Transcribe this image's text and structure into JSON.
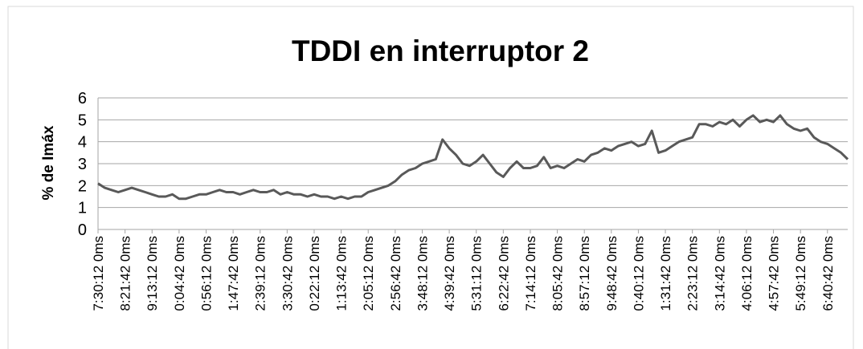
{
  "chart_data": {
    "type": "line",
    "title": "TDDI en interruptor 2",
    "y_label": "% de Imáx",
    "color": "#595959",
    "ylim": [
      0,
      6
    ],
    "yticks": [
      0,
      1,
      2,
      3,
      4,
      5,
      6
    ],
    "grid": true,
    "categories": [
      "7:30:12 0ms",
      null,
      null,
      null,
      "8:21:42 0ms",
      null,
      null,
      null,
      "9:13:12 0ms",
      null,
      null,
      null,
      "0:04:42 0ms",
      null,
      null,
      null,
      "0:56:12 0ms",
      null,
      null,
      null,
      "1:47:42 0ms",
      null,
      null,
      null,
      "2:39:12 0ms",
      null,
      null,
      null,
      "3:30:42 0ms",
      null,
      null,
      null,
      "0:22:12 0ms",
      null,
      null,
      null,
      "1:13:42 0ms",
      null,
      null,
      null,
      "2:05:12 0ms",
      null,
      null,
      null,
      "2:56:42 0ms",
      null,
      null,
      null,
      "3:48:12 0ms",
      null,
      null,
      null,
      "4:39:42 0ms",
      null,
      null,
      null,
      "5:31:12 0ms",
      null,
      null,
      null,
      "6:22:42 0ms",
      null,
      null,
      null,
      "7:14:12 0ms",
      null,
      null,
      null,
      "8:05:42 0ms",
      null,
      null,
      null,
      "8:57:12 0ms",
      null,
      null,
      null,
      "9:48:42 0ms",
      null,
      null,
      null,
      "0:40:12 0ms",
      null,
      null,
      null,
      "1:31:42 0ms",
      null,
      null,
      null,
      "2:23:12 0ms",
      null,
      null,
      null,
      "3:14:42 0ms",
      null,
      null,
      null,
      "4:06:12 0ms",
      null,
      null,
      null,
      "4:57:42 0ms",
      null,
      null,
      null,
      "5:49:12 0ms",
      null,
      null,
      null,
      "6:40:42 0ms",
      null,
      null,
      null
    ],
    "values": [
      2.1,
      1.9,
      1.8,
      1.7,
      1.8,
      1.9,
      1.8,
      1.7,
      1.6,
      1.5,
      1.5,
      1.6,
      1.4,
      1.4,
      1.5,
      1.6,
      1.6,
      1.7,
      1.8,
      1.7,
      1.7,
      1.6,
      1.7,
      1.8,
      1.7,
      1.7,
      1.8,
      1.6,
      1.7,
      1.6,
      1.6,
      1.5,
      1.6,
      1.5,
      1.5,
      1.4,
      1.5,
      1.4,
      1.5,
      1.5,
      1.7,
      1.8,
      1.9,
      2.0,
      2.2,
      2.5,
      2.7,
      2.8,
      3.0,
      3.1,
      3.2,
      4.1,
      3.7,
      3.4,
      3.0,
      2.9,
      3.1,
      3.4,
      3.0,
      2.6,
      2.4,
      2.8,
      3.1,
      2.8,
      2.8,
      2.9,
      3.3,
      2.8,
      2.9,
      2.8,
      3.0,
      3.2,
      3.1,
      3.4,
      3.5,
      3.7,
      3.6,
      3.8,
      3.9,
      4.0,
      3.8,
      3.9,
      4.5,
      3.5,
      3.6,
      3.8,
      4.0,
      4.1,
      4.2,
      4.8,
      4.8,
      4.7,
      4.9,
      4.8,
      5.0,
      4.7,
      5.0,
      5.2,
      4.9,
      5.0,
      4.9,
      5.2,
      4.8,
      4.6,
      4.5,
      4.6,
      4.2,
      4.0,
      3.9,
      3.7,
      3.5,
      3.2
    ]
  }
}
